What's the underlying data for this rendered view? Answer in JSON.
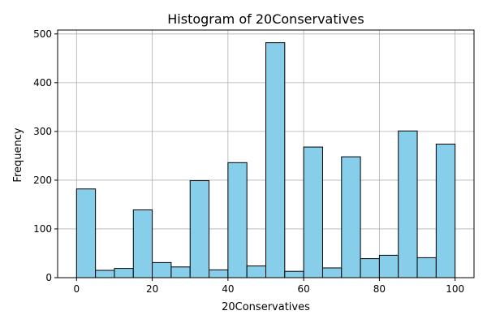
{
  "chart_data": {
    "type": "bar",
    "title": "Histogram of 20Conservatives",
    "xlabel": "20Conservatives",
    "ylabel": "Frequency",
    "xlim": [
      -5,
      105
    ],
    "ylim": [
      0,
      508
    ],
    "xticks": [
      0,
      20,
      40,
      60,
      80,
      100
    ],
    "yticks": [
      0,
      100,
      200,
      300,
      400,
      500
    ],
    "grid": true,
    "bin_edges": [
      0,
      5,
      10,
      15,
      20,
      25,
      30,
      35,
      40,
      45,
      50,
      55,
      60,
      65,
      70,
      75,
      80,
      85,
      90,
      95,
      100
    ],
    "values": [
      182,
      15,
      19,
      139,
      31,
      22,
      199,
      16,
      236,
      24,
      482,
      13,
      268,
      20,
      248,
      39,
      46,
      301,
      41,
      274
    ],
    "bar_color": "#87CEEB",
    "edge_color": "#000000",
    "grid_color": "#b0b0b0"
  }
}
